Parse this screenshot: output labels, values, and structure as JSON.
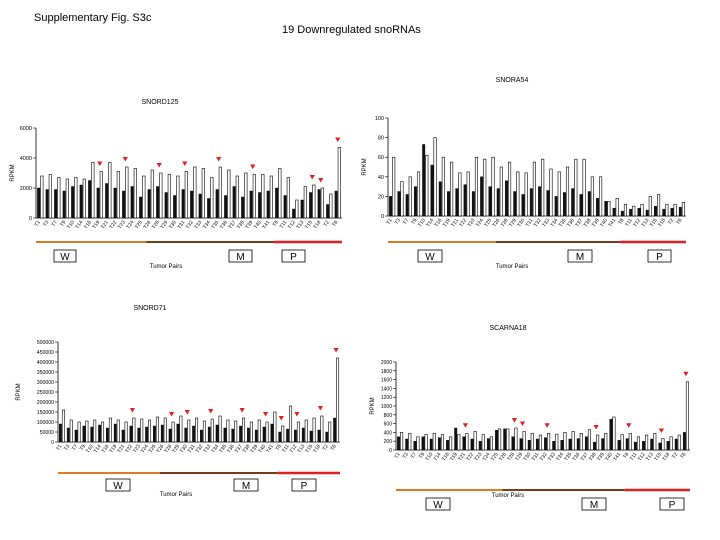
{
  "page": {
    "supp_label": "Supplementary Fig. S3c",
    "title": "19 Downregulated snoRNAs"
  },
  "colors": {
    "bar_dark": "#111111",
    "bar_light": "#ffffff",
    "marker": "#e02020",
    "group_W": "#e07a22",
    "group_M": "#7a3a1a",
    "group_P": "#e02020"
  },
  "chart_data": [
    {
      "type": "bar",
      "title": "SNORD125",
      "ylabel": "RPKM",
      "xlabel": "Tumor Pairs",
      "yticks": [
        0,
        2000,
        4000,
        6000
      ],
      "ylim": [
        0,
        6000
      ],
      "categories": [
        "T1",
        "T3",
        "T7",
        "T9",
        "T10",
        "T14",
        "T16",
        "T19",
        "T21",
        "T22",
        "T23",
        "T24",
        "T25",
        "T26",
        "T28",
        "T29",
        "T30",
        "T31",
        "T32",
        "T33",
        "T34",
        "T35",
        "T36",
        "T37",
        "T38",
        "T39",
        "T40",
        "T41",
        "T8",
        "T11",
        "T12",
        "T13",
        "T15",
        "T18",
        "T2",
        "T6"
      ],
      "series": [
        {
          "values": [
            2000,
            1900,
            1900,
            1800,
            2100,
            2200,
            2500,
            2000,
            2300,
            2000,
            1800,
            2100,
            1400,
            1900,
            2100,
            1700,
            1500,
            1900,
            1800,
            1600,
            1300,
            1900,
            1500,
            2100,
            1400,
            1800,
            1700,
            1800,
            2000,
            1500,
            600,
            1200,
            1700,
            1900,
            900,
            1800
          ]
        },
        {
          "values": [
            2800,
            2900,
            2700,
            2600,
            2700,
            2600,
            3700,
            3100,
            3700,
            3100,
            3400,
            3300,
            2800,
            3200,
            3000,
            2900,
            2800,
            3100,
            3400,
            3300,
            2700,
            3400,
            3200,
            2800,
            3000,
            2900,
            2900,
            2800,
            3300,
            2700,
            1200,
            2100,
            2200,
            2000,
            1600,
            4700
          ]
        }
      ],
      "markers": [
        7,
        10,
        14,
        17,
        21,
        25,
        32,
        33,
        35
      ],
      "groups": [
        {
          "label": "W",
          "range": [
            0,
            13
          ]
        },
        {
          "label": "M",
          "range": [
            13,
            28
          ]
        },
        {
          "label": "P",
          "range": [
            28,
            36
          ]
        }
      ]
    },
    {
      "type": "bar",
      "title": "SNORA54",
      "ylabel": "RPKM",
      "xlabel": "Tumor Pairs",
      "yticks": [
        0,
        20,
        40,
        60,
        80,
        100
      ],
      "ylim": [
        0,
        100
      ],
      "categories": [
        "T1",
        "T3",
        "T7",
        "T9",
        "T10",
        "T14",
        "T16",
        "T19",
        "T21",
        "T22",
        "T23",
        "T24",
        "T25",
        "T26",
        "T28",
        "T29",
        "T30",
        "T31",
        "T32",
        "T33",
        "T34",
        "T35",
        "T36",
        "T37",
        "T38",
        "T39",
        "T40",
        "T41",
        "T8",
        "T11",
        "T12",
        "T13",
        "T15",
        "T18",
        "T2",
        "T6"
      ],
      "series": [
        {
          "values": [
            20,
            25,
            22,
            30,
            73,
            52,
            35,
            25,
            28,
            32,
            25,
            40,
            30,
            28,
            36,
            25,
            22,
            28,
            30,
            26,
            20,
            24,
            28,
            22,
            25,
            18,
            15,
            8,
            5,
            7,
            8,
            6,
            10,
            7,
            8,
            9
          ]
        },
        {
          "values": [
            60,
            35,
            40,
            45,
            62,
            80,
            60,
            55,
            44,
            45,
            60,
            58,
            60,
            50,
            55,
            45,
            44,
            55,
            58,
            48,
            45,
            50,
            58,
            58,
            40,
            40,
            15,
            18,
            12,
            10,
            12,
            20,
            22,
            12,
            12,
            14
          ]
        }
      ],
      "groups": [
        {
          "label": "W",
          "range": [
            0,
            13
          ]
        },
        {
          "label": "M",
          "range": [
            13,
            28
          ]
        },
        {
          "label": "P",
          "range": [
            28,
            36
          ]
        }
      ]
    },
    {
      "type": "bar",
      "title": "SNORD71",
      "ylabel": "RPKM",
      "xlabel": "Tumor Pairs",
      "yticks": [
        0,
        50000,
        100000,
        150000,
        200000,
        250000,
        300000,
        350000,
        400000,
        450000,
        500000
      ],
      "ylim": [
        0,
        500000
      ],
      "categories": [
        "T1",
        "T3",
        "T7",
        "T9",
        "T10",
        "T14",
        "T16",
        "T19",
        "T21",
        "T22",
        "T23",
        "T24",
        "T25",
        "T26",
        "T28",
        "T29",
        "T30",
        "T31",
        "T32",
        "T33",
        "T34",
        "T35",
        "T36",
        "T37",
        "T38",
        "T39",
        "T40",
        "T41",
        "T8",
        "T11",
        "T12",
        "T13",
        "T15",
        "T18",
        "T2",
        "T6"
      ],
      "series": [
        {
          "values": [
            90000,
            70000,
            60000,
            80000,
            75000,
            85000,
            70000,
            90000,
            60000,
            80000,
            70000,
            75000,
            80000,
            85000,
            65000,
            90000,
            70000,
            80000,
            60000,
            75000,
            85000,
            70000,
            65000,
            80000,
            70000,
            60000,
            75000,
            90000,
            50000,
            65000,
            60000,
            70000,
            55000,
            60000,
            50000,
            120000
          ]
        },
        {
          "values": [
            160000,
            110000,
            100000,
            105000,
            110000,
            100000,
            120000,
            110000,
            100000,
            120000,
            115000,
            110000,
            125000,
            120000,
            100000,
            130000,
            110000,
            120000,
            105000,
            115000,
            130000,
            110000,
            105000,
            120000,
            100000,
            110000,
            100000,
            150000,
            80000,
            180000,
            100000,
            110000,
            120000,
            130000,
            100000,
            420000
          ]
        }
      ],
      "markers": [
        9,
        14,
        16,
        19,
        23,
        26,
        28,
        30,
        33,
        35
      ],
      "groups": [
        {
          "label": "W",
          "range": [
            0,
            13
          ]
        },
        {
          "label": "M",
          "range": [
            13,
            28
          ]
        },
        {
          "label": "P",
          "range": [
            28,
            36
          ]
        }
      ]
    },
    {
      "type": "bar",
      "title": "SCARNA18",
      "ylabel": "RPKM",
      "xlabel": "Tumor Pairs",
      "yticks": [
        0,
        200,
        400,
        600,
        800,
        1000,
        1200,
        1400,
        1600,
        1800,
        2000
      ],
      "ylim": [
        0,
        2000
      ],
      "categories": [
        "T1",
        "T3",
        "T7",
        "T9",
        "T10",
        "T14",
        "T16",
        "T19",
        "T21",
        "T22",
        "T23",
        "T24",
        "T25",
        "T26",
        "T28",
        "T29",
        "T30",
        "T31",
        "T32",
        "T33",
        "T34",
        "T35",
        "T36",
        "T37",
        "T38",
        "T39",
        "T40",
        "T41",
        "T8",
        "T11",
        "T12",
        "T13",
        "T15",
        "T18",
        "T2",
        "T6"
      ],
      "series": [
        {
          "values": [
            300,
            250,
            200,
            300,
            250,
            280,
            220,
            500,
            300,
            250,
            200,
            260,
            450,
            480,
            300,
            260,
            220,
            250,
            280,
            200,
            220,
            250,
            260,
            300,
            180,
            260,
            700,
            220,
            260,
            180,
            200,
            250,
            160,
            200,
            250,
            400
          ]
        },
        {
          "values": [
            400,
            380,
            300,
            350,
            380,
            350,
            300,
            350,
            380,
            420,
            350,
            300,
            480,
            480,
            500,
            420,
            380,
            340,
            380,
            360,
            400,
            420,
            380,
            460,
            340,
            380,
            750,
            350,
            380,
            300,
            340,
            380,
            260,
            300,
            340,
            1550
          ]
        }
      ],
      "markers": [
        8,
        14,
        15,
        18,
        24,
        28,
        32,
        35
      ],
      "groups": [
        {
          "label": "W",
          "range": [
            0,
            13
          ]
        },
        {
          "label": "M",
          "range": [
            13,
            28
          ]
        },
        {
          "label": "P",
          "range": [
            28,
            36
          ]
        }
      ]
    }
  ]
}
